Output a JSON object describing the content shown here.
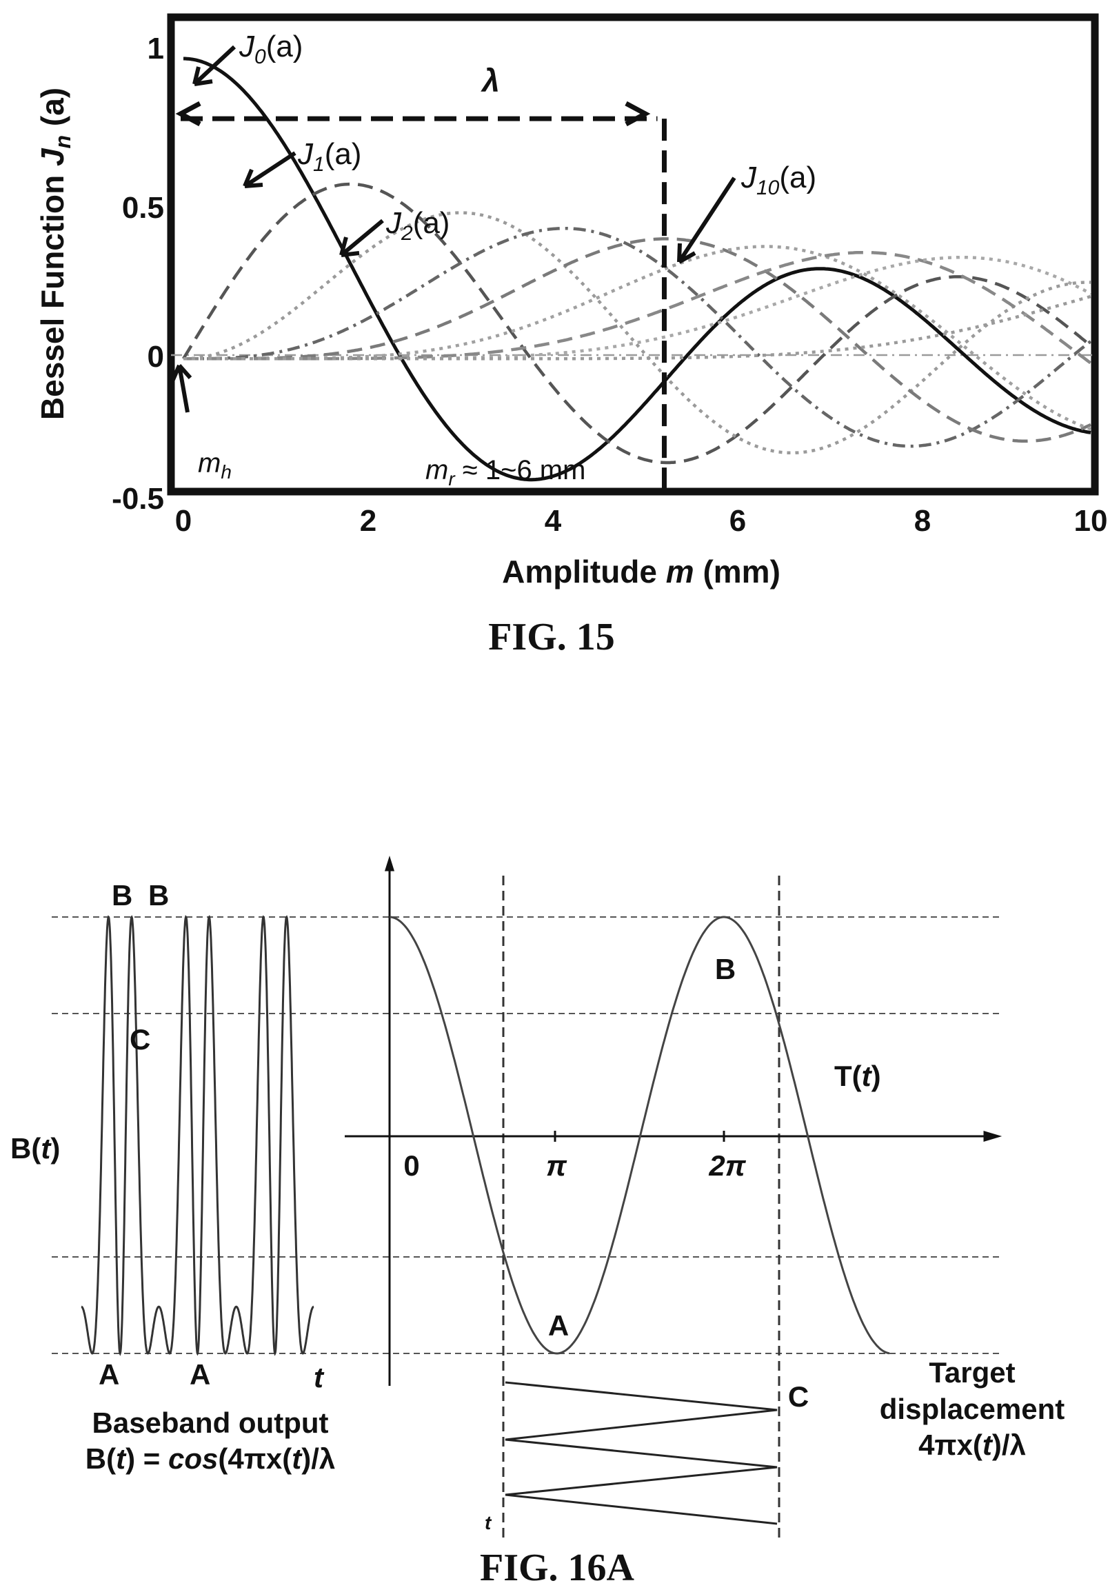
{
  "chart_data": [
    {
      "id": "fig15",
      "type": "line",
      "caption": "FIG. 15",
      "xlabel": {
        "pre": "Amplitude ",
        "var": "m",
        "post": " (mm)"
      },
      "ylabel": {
        "pre": "Bessel Function ",
        "var": "J",
        "sub": "n",
        "post": " (a)"
      },
      "xlim": [
        0,
        10
      ],
      "ylim": [
        -0.5,
        1
      ],
      "x_ticks": [
        "0",
        "2",
        "4",
        "6",
        "8",
        "10"
      ],
      "y_ticks": [
        "1",
        "0.5",
        "0",
        "-0.5"
      ],
      "series": [
        {
          "key": "J0",
          "order": 0,
          "style": "solid",
          "color": "#111111",
          "label": {
            "var": "J",
            "sub": "0",
            "post": "(a)"
          }
        },
        {
          "key": "J1",
          "order": 1,
          "style": "dash",
          "color": "#555555",
          "label": {
            "var": "J",
            "sub": "1",
            "post": "(a)"
          }
        },
        {
          "key": "J2",
          "order": 2,
          "style": "dot",
          "color": "#9a9a9a",
          "label": {
            "var": "J",
            "sub": "2",
            "post": "(a)"
          }
        },
        {
          "key": "J3",
          "order": 3,
          "style": "dashdot",
          "color": "#666666"
        },
        {
          "key": "J4",
          "order": 4,
          "style": "dash",
          "color": "#7a7a7a"
        },
        {
          "key": "J5",
          "order": 5,
          "style": "dot",
          "color": "#a0a0a0"
        },
        {
          "key": "J6",
          "order": 6,
          "style": "dash",
          "color": "#888888"
        },
        {
          "key": "J7",
          "order": 7,
          "style": "dot",
          "color": "#a8a8a8"
        },
        {
          "key": "J10",
          "order": 10,
          "style": "dot",
          "color": "#9a9a9a",
          "label": {
            "var": "J",
            "sub": "10",
            "post": "(a)"
          }
        }
      ],
      "annotations": {
        "lambda": "λ",
        "lambda_x_end": 5.3,
        "lambda_y": 0.8,
        "m_h": {
          "var": "m",
          "sub": "h"
        },
        "m_r": {
          "var": "m",
          "sub": "r",
          "post": " ≈ 1~6 mm"
        }
      }
    },
    {
      "id": "fig16a",
      "type": "line",
      "caption": "FIG. 16A",
      "left_panel": {
        "title": {
          "pre": "B(",
          "var": "t",
          "post": ")"
        },
        "time_label": "t",
        "points": {
          "B1": "B",
          "B2": "B",
          "C": "C",
          "A1": "A",
          "A2": "A"
        },
        "description_line1": "Baseband output",
        "description_line2": {
          "pre": "B(",
          "var_t": "t",
          "mid": ") = ",
          "func": "cos",
          "post": "(4πx(",
          "var_t2": "t",
          "end": ")/λ"
        }
      },
      "right_panel": {
        "curve_label": {
          "pre": "T(",
          "var": "t",
          "post": ")"
        },
        "x_ticks": [
          "0",
          "π",
          "2π"
        ],
        "curve": "cos",
        "phase_range": [
          0,
          14.4
        ],
        "points": {
          "A": "A",
          "B": "B",
          "C": "C"
        },
        "displacement_time_label": "t",
        "description_line1": "Target",
        "description_line2": "displacement",
        "description_line3": {
          "pre": "4πx(",
          "var": "t",
          "post": ")/λ"
        }
      }
    }
  ]
}
